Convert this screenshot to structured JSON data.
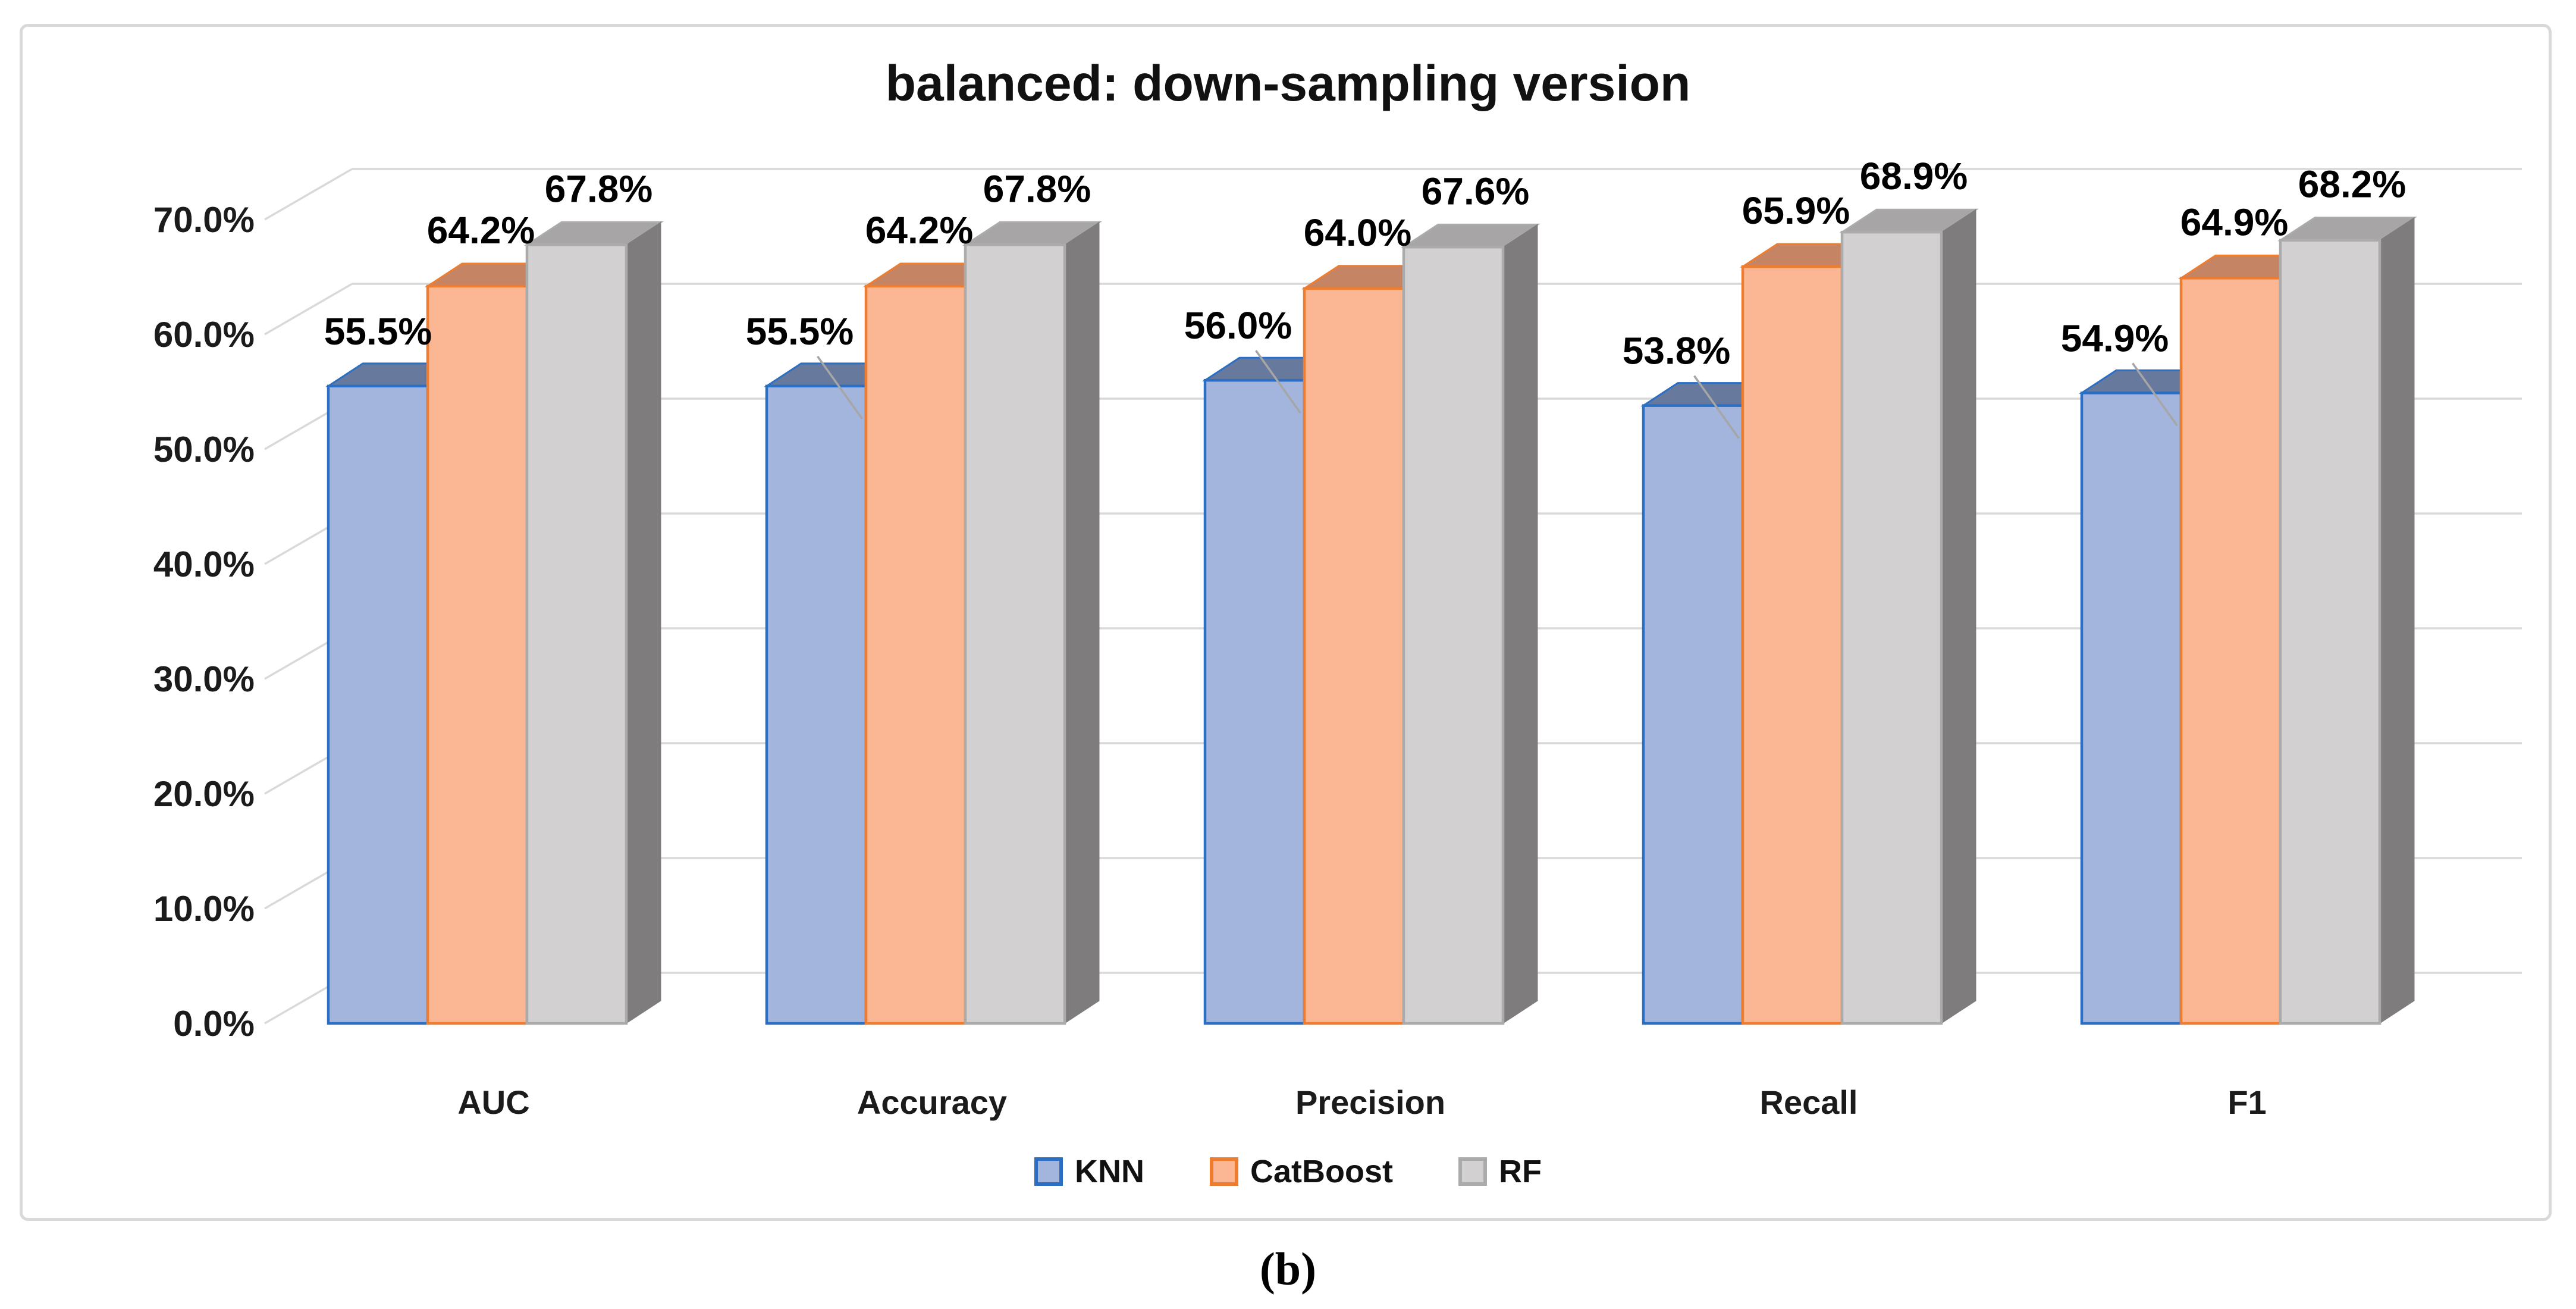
{
  "figure": {
    "title": "balanced: down-sampling version",
    "caption": "(b)"
  },
  "legend": {
    "items": [
      {
        "label": "KNN",
        "fill": "#a3b5dc",
        "border": "#2a6fc4"
      },
      {
        "label": "CatBoost",
        "fill": "#fbb793",
        "border": "#ee7d2f"
      },
      {
        "label": "RF",
        "fill": "#d2d0d0",
        "border": "#ababab"
      }
    ]
  },
  "chart_data": {
    "type": "bar",
    "projection": "3d",
    "title": "balanced: down-sampling version",
    "categories": [
      "AUC",
      "Accuracy",
      "Precision",
      "Recall",
      "F1"
    ],
    "series": [
      {
        "name": "KNN",
        "values": [
          55.5,
          55.5,
          56.0,
          53.8,
          54.9
        ],
        "labels": [
          "55.5%",
          "55.5%",
          "56.0%",
          "53.8%",
          "54.9%"
        ],
        "front": "#a3b5dc",
        "top": "#68799e",
        "side": "#5f7095",
        "border": "#2a6fc4"
      },
      {
        "name": "CatBoost",
        "values": [
          64.2,
          64.2,
          64.0,
          65.9,
          64.9
        ],
        "labels": [
          "64.2%",
          "64.2%",
          "64.0%",
          "65.9%",
          "64.9%"
        ],
        "front": "#fbb793",
        "top": "#c58565",
        "side": "#b0714e",
        "border": "#ee7d2f"
      },
      {
        "name": "RF",
        "values": [
          67.8,
          67.8,
          67.6,
          68.9,
          68.2
        ],
        "labels": [
          "67.8%",
          "67.8%",
          "67.6%",
          "68.9%",
          "68.2%"
        ],
        "front": "#d2d0d0",
        "top": "#a7a5a5",
        "side": "#7e7c7c",
        "border": "#ababab"
      }
    ],
    "ylim": [
      0,
      70
    ],
    "ytick_step": 10,
    "yticks": [
      "0.0%",
      "10.0%",
      "20.0%",
      "30.0%",
      "40.0%",
      "50.0%",
      "60.0%",
      "70.0%"
    ],
    "grid": true,
    "gridline_color": "#d9d9d9",
    "leader_line_color": "#a6a6a6",
    "legend_position": "bottom",
    "label_color": "#000000",
    "tick_color": "#1b1b1b"
  }
}
